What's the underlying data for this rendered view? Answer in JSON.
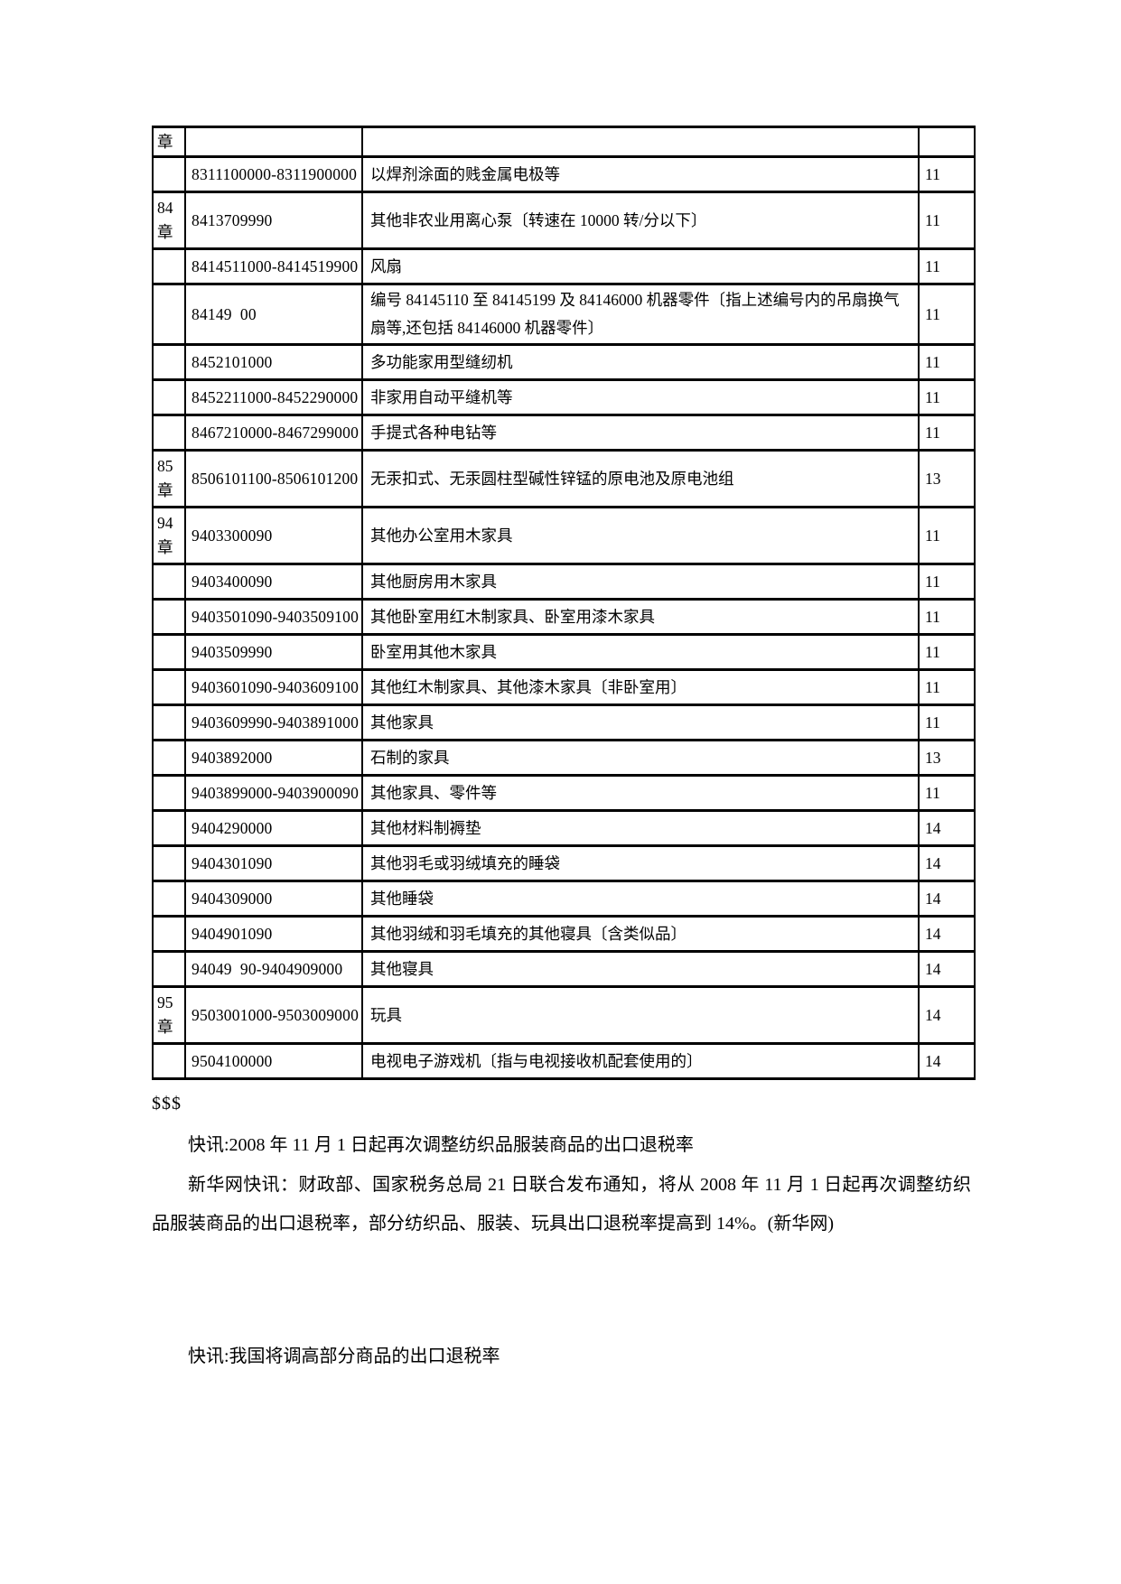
{
  "table": {
    "columns": [
      "chapter",
      "hs_code",
      "description",
      "rebate_rate"
    ],
    "rows": [
      {
        "chapter": "章",
        "code": "",
        "desc": "",
        "rate": ""
      },
      {
        "chapter": "",
        "code": "8311100000-8311900000",
        "desc": "以焊剂涂面的贱金属电极等",
        "rate": "11"
      },
      {
        "chapter": "84章",
        "code": "8413709990",
        "desc": "其他非农业用离心泵〔转速在 10000 转/分以下〕",
        "rate": "11"
      },
      {
        "chapter": "",
        "code": "8414511000-8414519900",
        "desc": "风扇",
        "rate": "11"
      },
      {
        "chapter": "",
        "code": "84149  00",
        "desc": "编号 84145110 至 84145199 及 84146000 机器零件〔指上述编号内的吊扇换气扇等,还包括 84146000 机器零件〕",
        "rate": "11"
      },
      {
        "chapter": "",
        "code": "8452101000",
        "desc": "多功能家用型缝纫机",
        "rate": "11"
      },
      {
        "chapter": "",
        "code": "8452211000-8452290000",
        "desc": "非家用自动平缝机等",
        "rate": "11"
      },
      {
        "chapter": "",
        "code": "8467210000-8467299000",
        "desc": "手提式各种电钻等",
        "rate": "11"
      },
      {
        "chapter": "85章",
        "code": "8506101100-8506101200",
        "desc": "无汞扣式、无汞圆柱型碱性锌锰的原电池及原电池组",
        "rate": "13"
      },
      {
        "chapter": "94章",
        "code": "9403300090",
        "desc": "其他办公室用木家具",
        "rate": "11"
      },
      {
        "chapter": "",
        "code": "9403400090",
        "desc": "其他厨房用木家具",
        "rate": "11"
      },
      {
        "chapter": "",
        "code": "9403501090-9403509100",
        "desc": "其他卧室用红木制家具、卧室用漆木家具",
        "rate": "11"
      },
      {
        "chapter": "",
        "code": "9403509990",
        "desc": "卧室用其他木家具",
        "rate": "11"
      },
      {
        "chapter": "",
        "code": "9403601090-9403609100",
        "desc": "其他红木制家具、其他漆木家具〔非卧室用〕",
        "rate": "11"
      },
      {
        "chapter": "",
        "code": "9403609990-9403891000",
        "desc": "其他家具",
        "rate": "11"
      },
      {
        "chapter": "",
        "code": "9403892000",
        "desc": "石制的家具",
        "rate": "13"
      },
      {
        "chapter": "",
        "code": "9403899000-9403900090",
        "desc": "其他家具、零件等",
        "rate": "11"
      },
      {
        "chapter": "",
        "code": "9404290000",
        "desc": "其他材料制褥垫",
        "rate": "14"
      },
      {
        "chapter": "",
        "code": "9404301090",
        "desc": "其他羽毛或羽绒填充的睡袋",
        "rate": "14"
      },
      {
        "chapter": "",
        "code": "9404309000",
        "desc": "其他睡袋",
        "rate": "14"
      },
      {
        "chapter": "",
        "code": "9404901090",
        "desc": "其他羽绒和羽毛填充的其他寝具〔含类似品〕",
        "rate": "14"
      },
      {
        "chapter": "",
        "code": "94049  90-9404909000",
        "desc": "其他寝具",
        "rate": "14"
      },
      {
        "chapter": "95章",
        "code": "9503001000-9503009000",
        "desc": "玩具",
        "rate": "14"
      },
      {
        "chapter": "",
        "code": "9504100000",
        "desc": "电视电子游戏机〔指与电视接收机配套使用的〕",
        "rate": "14"
      }
    ]
  },
  "footer": {
    "marker": "$$$",
    "headline1": "快讯:2008 年 11 月 1 日起再次调整纺织品服装商品的出口退税率",
    "paragraph": "新华网快讯：财政部、国家税务总局 21 日联合发布通知，将从 2008 年 11 月 1 日起再次调整纺织品服装商品的出口退税率，部分纺织品、服装、玩具出口退税率提高到 14%。(新华网)",
    "headline2": "快讯:我国将调高部分商品的出口退税率"
  }
}
